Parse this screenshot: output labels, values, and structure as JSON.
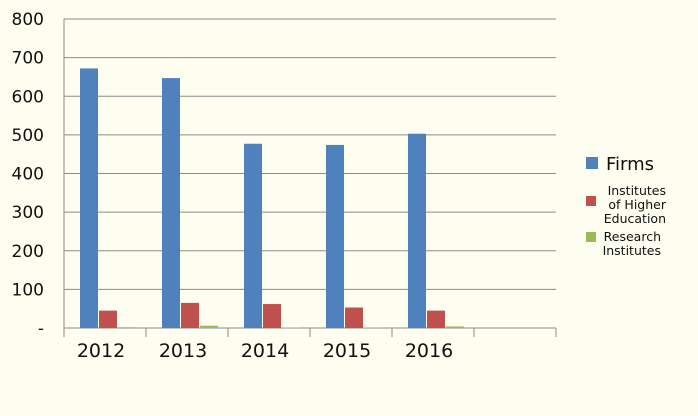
{
  "chart_data": {
    "type": "bar",
    "categories": [
      "2012",
      "2013",
      "2014",
      "2015",
      "2016",
      ""
    ],
    "series": [
      {
        "name": "Firms",
        "values": [
          672,
          647,
          477,
          474,
          503,
          null
        ],
        "color": "#4f81bd"
      },
      {
        "name": "Institutes of Higher Education",
        "values": [
          45,
          65,
          62,
          53,
          45,
          null
        ],
        "color": "#c0504d"
      },
      {
        "name": "Research Institutes",
        "values": [
          2,
          6,
          1,
          1,
          4,
          null
        ],
        "color": "#9bbb59"
      }
    ],
    "yticks": [
      "-",
      "100",
      "200",
      "300",
      "400",
      "500",
      "600",
      "700",
      "800"
    ],
    "ylim": [
      0,
      800
    ],
    "grid": true,
    "legend": {
      "placement": "right",
      "lines": [
        [
          "Firms"
        ],
        [
          "Institutes",
          "of Higher",
          "Education"
        ],
        [
          "Research",
          "Institutes"
        ]
      ]
    },
    "title": "",
    "xlabel": "",
    "ylabel": ""
  }
}
